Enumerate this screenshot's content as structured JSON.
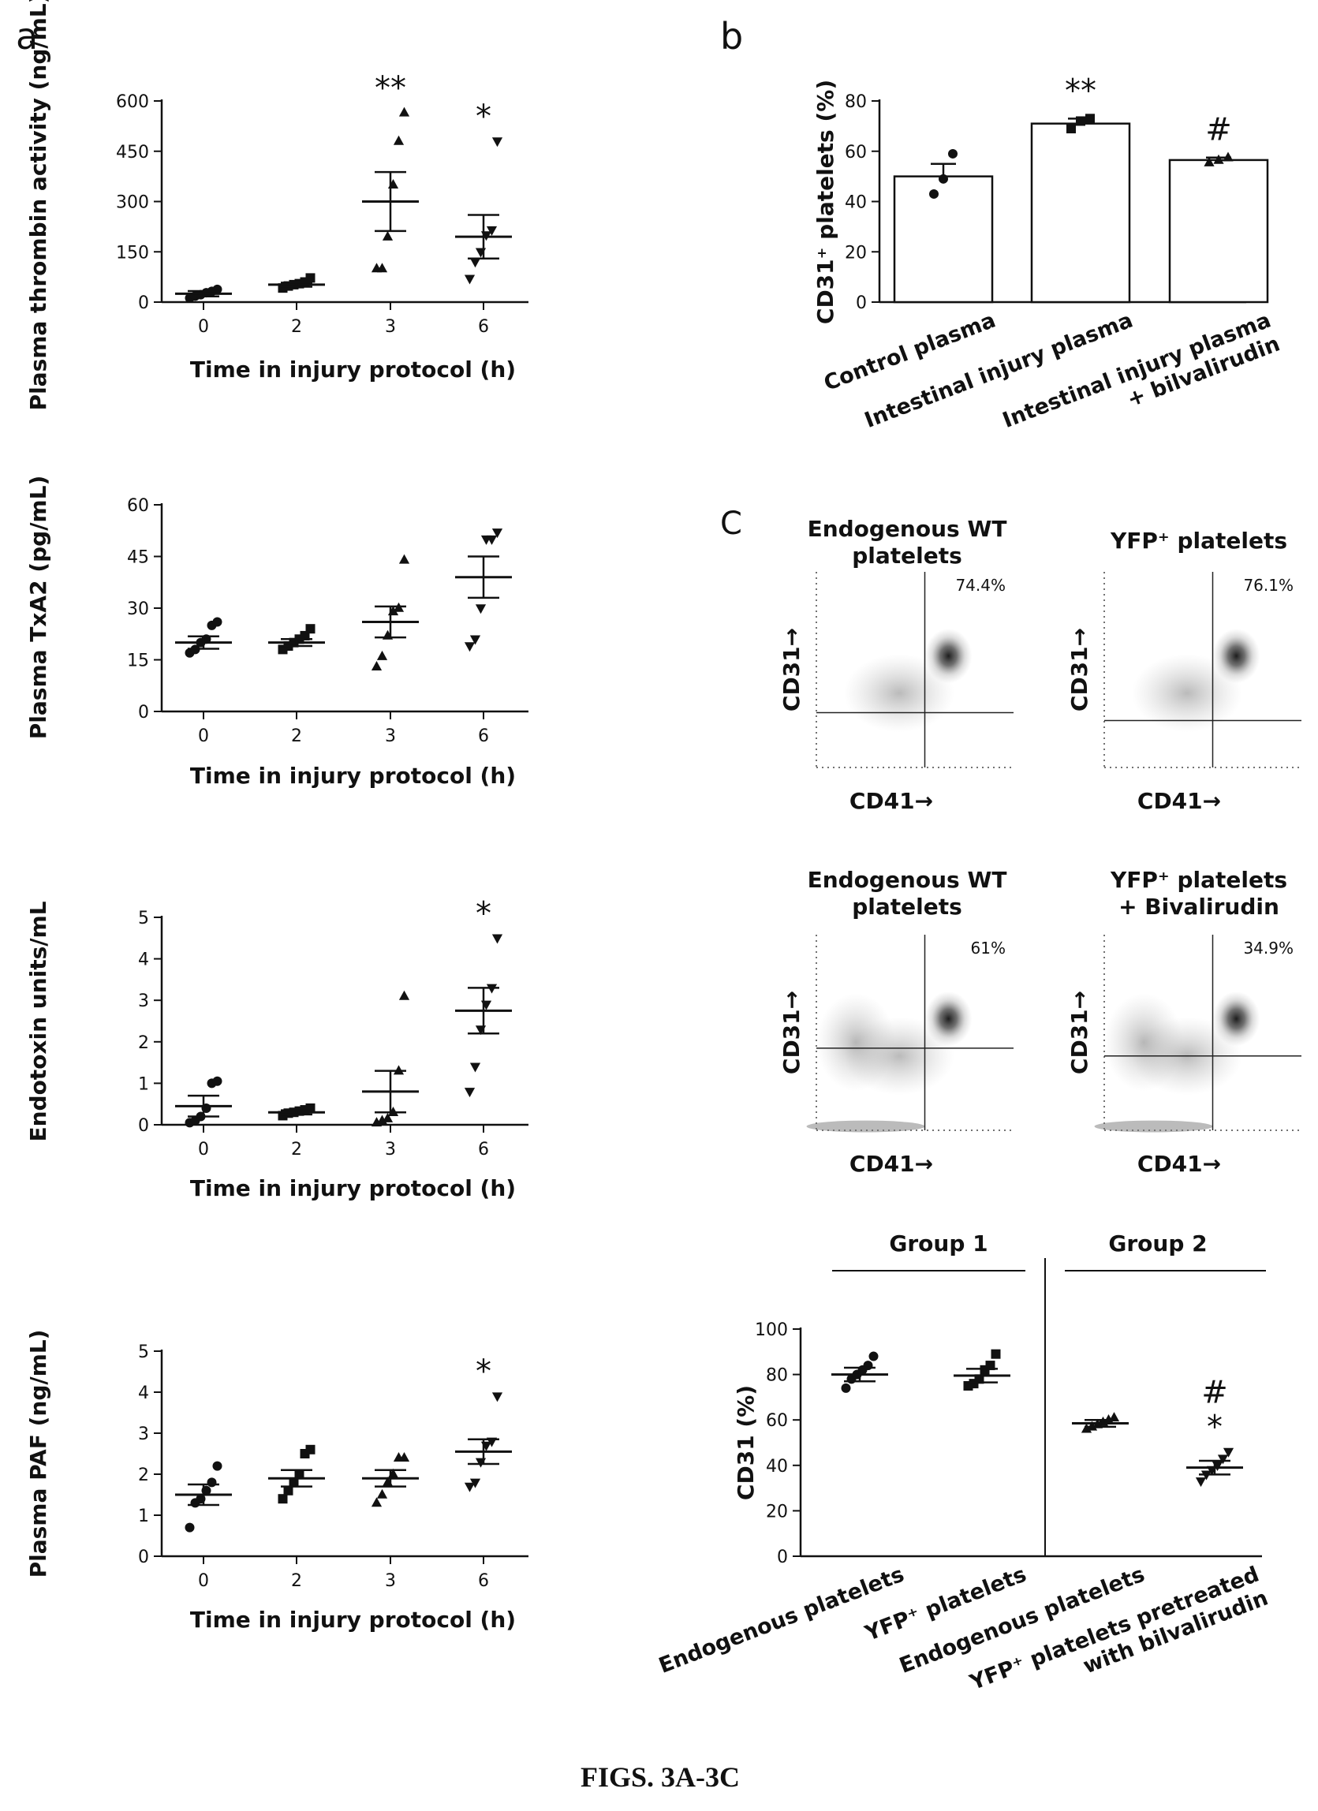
{
  "panel_labels": {
    "a": "a",
    "b": "b",
    "c": "C"
  },
  "caption": "FIGS. 3A-3C",
  "chart_data": [
    {
      "id": "a1",
      "type": "scatter",
      "ylabel": "Plasma thrombin activity (ng/mL)",
      "xlabel": "Time in injury protocol (h)",
      "categories": [
        "0",
        "2",
        "3",
        "6"
      ],
      "ylim": [
        0,
        600
      ],
      "yticks": [
        "0",
        "150",
        "300",
        "450",
        "600"
      ],
      "groups": [
        {
          "category": "0",
          "marker": "circle",
          "mean": 25,
          "sem": 8,
          "points": [
            12,
            18,
            22,
            28,
            32,
            38
          ],
          "annotation": ""
        },
        {
          "category": "2",
          "marker": "square",
          "mean": 52,
          "sem": 6,
          "points": [
            42,
            48,
            52,
            55,
            60,
            72
          ],
          "annotation": ""
        },
        {
          "category": "3",
          "marker": "triangle-up",
          "mean": 300,
          "sem": 88,
          "points": [
            100,
            100,
            195,
            350,
            480,
            565
          ],
          "annotation": "**"
        },
        {
          "category": "6",
          "marker": "triangle-down",
          "mean": 195,
          "sem": 65,
          "points": [
            70,
            120,
            150,
            200,
            215,
            480
          ],
          "annotation": "*"
        }
      ]
    },
    {
      "id": "b",
      "type": "bar",
      "ylabel": "CD31⁺ platelets (%)",
      "categories": [
        "Control plasma",
        "Intestinal injury plasma",
        "Intestinal injury plasma + bilvalirudin"
      ],
      "ylim": [
        0,
        80
      ],
      "yticks": [
        "0",
        "20",
        "40",
        "60",
        "80"
      ],
      "groups": [
        {
          "category": "Control plasma",
          "marker": "circle",
          "mean": 50,
          "sem": 5,
          "points": [
            43,
            49,
            59
          ],
          "annotation": ""
        },
        {
          "category": "Intestinal injury plasma",
          "marker": "square",
          "mean": 71,
          "sem": 2,
          "points": [
            69,
            72,
            73
          ],
          "annotation": "**"
        },
        {
          "category": "Intestinal injury plasma + bilvalirudin",
          "marker": "triangle-up",
          "mean": 56.5,
          "sem": 1,
          "points": [
            55.5,
            56.5,
            57.5
          ],
          "annotation": "#"
        }
      ]
    },
    {
      "id": "a2",
      "type": "scatter",
      "ylabel": "Plasma TxA2 (pg/mL)",
      "xlabel": "Time in injury protocol (h)",
      "categories": [
        "0",
        "2",
        "3",
        "6"
      ],
      "ylim": [
        0,
        60
      ],
      "yticks": [
        "0",
        "15",
        "30",
        "45",
        "60"
      ],
      "groups": [
        {
          "category": "0",
          "marker": "circle",
          "mean": 20,
          "sem": 1.8,
          "points": [
            17,
            18,
            20,
            21,
            25,
            26
          ],
          "annotation": ""
        },
        {
          "category": "2",
          "marker": "square",
          "mean": 20,
          "sem": 1,
          "points": [
            18,
            19,
            20,
            21,
            22,
            24
          ],
          "annotation": ""
        },
        {
          "category": "3",
          "marker": "triangle-up",
          "mean": 26,
          "sem": 4.5,
          "points": [
            13,
            16,
            22,
            29,
            30,
            44
          ],
          "annotation": ""
        },
        {
          "category": "6",
          "marker": "triangle-down",
          "mean": 39,
          "sem": 6,
          "points": [
            19,
            21,
            30,
            50,
            50,
            52
          ],
          "annotation": ""
        }
      ]
    },
    {
      "id": "a3",
      "type": "scatter",
      "ylabel": "Endotoxin units/mL",
      "xlabel": "Time in injury protocol (h)",
      "categories": [
        "0",
        "2",
        "3",
        "6"
      ],
      "ylim": [
        0,
        5
      ],
      "yticks": [
        "0",
        "1",
        "2",
        "3",
        "4",
        "5"
      ],
      "groups": [
        {
          "category": "0",
          "marker": "circle",
          "mean": 0.45,
          "sem": 0.25,
          "points": [
            0.05,
            0.1,
            0.2,
            0.4,
            1.0,
            1.05
          ],
          "annotation": ""
        },
        {
          "category": "2",
          "marker": "square",
          "mean": 0.3,
          "sem": 0.05,
          "points": [
            0.22,
            0.28,
            0.3,
            0.33,
            0.36,
            0.4
          ],
          "annotation": ""
        },
        {
          "category": "3",
          "marker": "triangle-up",
          "mean": 0.8,
          "sem": 0.5,
          "points": [
            0.05,
            0.1,
            0.15,
            0.3,
            1.3,
            3.1
          ],
          "annotation": ""
        },
        {
          "category": "6",
          "marker": "triangle-down",
          "mean": 2.75,
          "sem": 0.55,
          "points": [
            0.8,
            1.4,
            2.3,
            2.9,
            3.3,
            4.5
          ],
          "annotation": "*"
        }
      ]
    },
    {
      "id": "a4",
      "type": "scatter",
      "ylabel": "Plasma PAF (ng/mL)",
      "xlabel": "Time in injury protocol (h)",
      "categories": [
        "0",
        "2",
        "3",
        "6"
      ],
      "ylim": [
        0,
        5
      ],
      "yticks": [
        "0",
        "1",
        "2",
        "3",
        "4",
        "5"
      ],
      "groups": [
        {
          "category": "0",
          "marker": "circle",
          "mean": 1.5,
          "sem": 0.25,
          "points": [
            0.7,
            1.3,
            1.4,
            1.6,
            1.8,
            2.2
          ],
          "annotation": ""
        },
        {
          "category": "2",
          "marker": "square",
          "mean": 1.9,
          "sem": 0.2,
          "points": [
            1.4,
            1.6,
            1.8,
            2.0,
            2.5,
            2.6
          ],
          "annotation": ""
        },
        {
          "category": "3",
          "marker": "triangle-up",
          "mean": 1.9,
          "sem": 0.2,
          "points": [
            1.3,
            1.5,
            1.8,
            2.0,
            2.4,
            2.4
          ],
          "annotation": ""
        },
        {
          "category": "6",
          "marker": "triangle-down",
          "mean": 2.55,
          "sem": 0.3,
          "points": [
            1.7,
            1.8,
            2.3,
            2.7,
            2.8,
            3.9
          ],
          "annotation": "*"
        }
      ]
    },
    {
      "id": "c",
      "type": "scatter",
      "ylabel": "CD31 (%)",
      "categories": [
        "Endogenous platelets",
        "YFP⁺ platelets",
        "Endogenous platelets",
        "YFP⁺ platelets pretreated with bilvalirudin"
      ],
      "ylim": [
        0,
        100
      ],
      "yticks": [
        "0",
        "20",
        "40",
        "60",
        "80",
        "100"
      ],
      "group_labels": [
        "Group 1",
        "Group 2"
      ],
      "groups": [
        {
          "category": "Endogenous platelets",
          "marker": "circle",
          "mean": 80,
          "sem": 3,
          "points": [
            74,
            78,
            80,
            82,
            84,
            88
          ],
          "annotation": ""
        },
        {
          "category": "YFP⁺ platelets",
          "marker": "square",
          "mean": 79.5,
          "sem": 3,
          "points": [
            75,
            76,
            78,
            82,
            84,
            89
          ],
          "annotation": ""
        },
        {
          "category": "Endogenous platelets",
          "marker": "triangle-up",
          "mean": 58.5,
          "sem": 1.5,
          "points": [
            56,
            57,
            58,
            59,
            60,
            61
          ],
          "annotation": ""
        },
        {
          "category": "YFP⁺ platelets pretreated with bilvalirudin",
          "marker": "triangle-down",
          "mean": 39,
          "sem": 3,
          "points": [
            33,
            36,
            38,
            40,
            43,
            46
          ],
          "annotation": "#\n*"
        }
      ]
    },
    {
      "id": "flow",
      "type": "scatter",
      "xlabel": "CD41→",
      "ylabel": "CD31→",
      "plots": [
        {
          "title": "Endogenous WT platelets",
          "percent": "74.4%"
        },
        {
          "title": "YFP⁺ platelets",
          "percent": "76.1%"
        },
        {
          "title": "Endogenous WT platelets",
          "percent": "61%"
        },
        {
          "title": "YFP⁺ platelets + Bivalirudin",
          "percent": "34.9%"
        }
      ]
    }
  ]
}
